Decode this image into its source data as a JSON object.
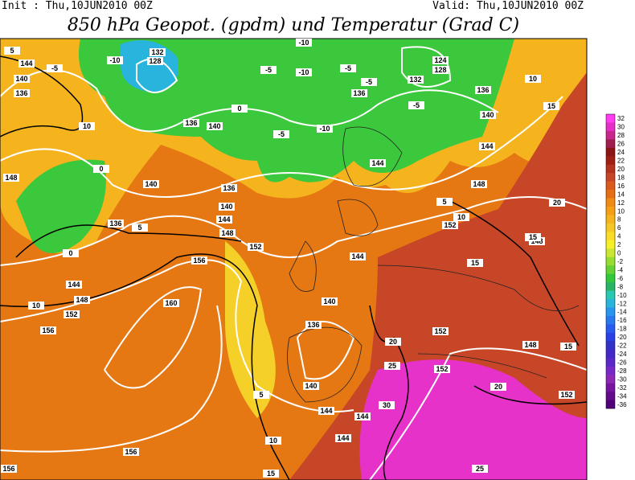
{
  "header": {
    "init": "Init : Thu,10JUN2010 00Z",
    "valid": "Valid: Thu,10JUN2010 00Z",
    "title": "850 hPa Geopot. (gpdm) und Temperatur (Grad C)"
  },
  "colorbar": {
    "values": [
      32,
      30,
      28,
      26,
      24,
      22,
      20,
      18,
      16,
      14,
      12,
      10,
      8,
      6,
      4,
      2,
      0,
      -2,
      -4,
      -6,
      -8,
      -10,
      -12,
      -14,
      -16,
      -18,
      -20,
      -22,
      -24,
      -26,
      -28,
      -30,
      -32,
      -34,
      -36
    ],
    "colors": [
      "#ff3cf0",
      "#e62fc8",
      "#c8288c",
      "#a01e50",
      "#8c1414",
      "#a01e14",
      "#b4321e",
      "#c84628",
      "#dc5a1e",
      "#e66e14",
      "#f08c14",
      "#f5a014",
      "#f5b41e",
      "#f5c828",
      "#fadc28",
      "#f5f028",
      "#c8e632",
      "#96dc32",
      "#64d232",
      "#32c83c",
      "#28b464",
      "#28c8b4",
      "#28b4dc",
      "#2896f0",
      "#2878f0",
      "#285af0",
      "#2840e6",
      "#3232c8",
      "#4628c8",
      "#5a28c8",
      "#7828c8",
      "#8c28b4",
      "#7814a0",
      "#640a8c",
      "#500078"
    ]
  },
  "geopotential_labels": [
    144,
    140,
    136,
    132,
    128,
    124,
    128,
    132,
    136,
    136,
    136,
    140,
    140,
    144,
    144,
    148,
    140,
    136,
    140,
    144,
    148,
    152,
    148,
    152,
    148,
    156,
    144,
    148,
    152,
    160,
    156,
    144,
    140,
    136,
    152,
    148,
    152,
    152,
    140,
    144,
    144,
    144,
    156,
    156,
    136
  ],
  "temperature_labels": [
    -10,
    -5,
    5,
    10,
    10,
    15,
    0,
    5,
    0,
    10,
    5,
    10,
    15,
    20,
    25,
    30,
    25,
    20,
    15,
    15,
    10,
    5,
    20,
    15,
    -10,
    -5,
    -5,
    -5,
    -10,
    -5,
    0,
    -5,
    -10
  ]
}
